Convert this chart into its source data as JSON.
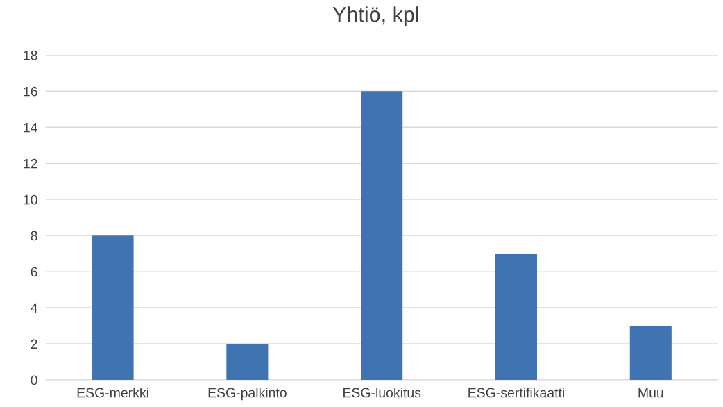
{
  "chart_data": {
    "type": "bar",
    "title": "Yhtiö, kpl",
    "categories": [
      "ESG-merkki",
      "ESG-palkinto",
      "ESG-luokitus",
      "ESG-sertifikaatti",
      "Muu"
    ],
    "values": [
      8,
      2,
      16,
      7,
      3
    ],
    "color": "#3f73b1",
    "ylim": [
      0,
      18
    ],
    "yticks": [
      0,
      2,
      4,
      6,
      8,
      10,
      12,
      14,
      16,
      18
    ],
    "grid": "y",
    "legend": false
  }
}
